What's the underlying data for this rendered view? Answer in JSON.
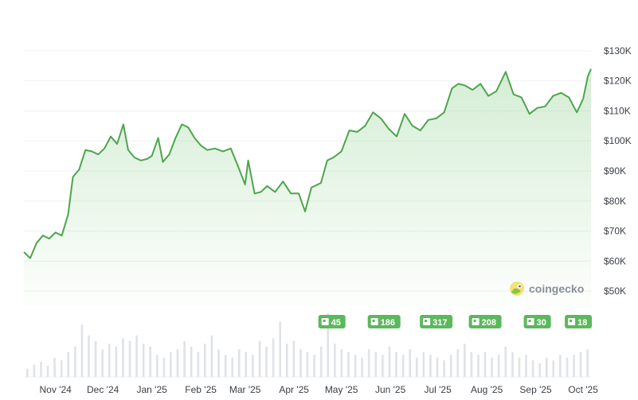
{
  "chart_data": {
    "type": "area",
    "ylim": [
      45000,
      135000
    ],
    "y_ticks": [
      "$130K",
      "$120K",
      "$110K",
      "$100K",
      "$90K",
      "$80K",
      "$70K",
      "$60K",
      "$50K"
    ],
    "x_ticks": [
      "Nov '24",
      "Dec '24",
      "Jan '25",
      "Feb '25",
      "Mar '25",
      "Apr '25",
      "May '25",
      "Jun '25",
      "Jul '25",
      "Aug '25",
      "Sep '25",
      "Oct '25"
    ],
    "grid": true,
    "line_color": "#4CA64C",
    "fill_color": "#8fd08f",
    "volume_color": "#dfe3e8",
    "series": [
      {
        "x": [
          "2024-10-12",
          "2024-10-16",
          "2024-10-20",
          "2024-10-24",
          "2024-10-28",
          "2024-11-01",
          "2024-11-05",
          "2024-11-09",
          "2024-11-12",
          "2024-11-16",
          "2024-11-20",
          "2024-11-24",
          "2024-11-28",
          "2024-12-02",
          "2024-12-06",
          "2024-12-10",
          "2024-12-14",
          "2024-12-17",
          "2024-12-21",
          "2024-12-25",
          "2024-12-29",
          "2025-01-01",
          "2025-01-05",
          "2025-01-08",
          "2025-01-12",
          "2025-01-16",
          "2025-01-20",
          "2025-01-24",
          "2025-01-28",
          "2025-02-01",
          "2025-02-05",
          "2025-02-10",
          "2025-02-15",
          "2025-02-20",
          "2025-02-25",
          "2025-03-01",
          "2025-03-03",
          "2025-03-07",
          "2025-03-11",
          "2025-03-15",
          "2025-03-20",
          "2025-03-25",
          "2025-03-30",
          "2025-04-04",
          "2025-04-08",
          "2025-04-12",
          "2025-04-18",
          "2025-04-22",
          "2025-04-26",
          "2025-05-01",
          "2025-05-06",
          "2025-05-11",
          "2025-05-16",
          "2025-05-21",
          "2025-05-26",
          "2025-05-31",
          "2025-06-05",
          "2025-06-10",
          "2025-06-15",
          "2025-06-20",
          "2025-06-25",
          "2025-06-30",
          "2025-07-05",
          "2025-07-10",
          "2025-07-14",
          "2025-07-18",
          "2025-07-23",
          "2025-07-28",
          "2025-08-02",
          "2025-08-07",
          "2025-08-13",
          "2025-08-18",
          "2025-08-23",
          "2025-08-28",
          "2025-09-02",
          "2025-09-07",
          "2025-09-12",
          "2025-09-17",
          "2025-09-22",
          "2025-09-27",
          "2025-10-01",
          "2025-10-04",
          "2025-10-06"
        ],
        "values": [
          63000,
          61000,
          66000,
          68500,
          67500,
          69500,
          68500,
          75500,
          88000,
          90500,
          97000,
          96500,
          95500,
          97500,
          101500,
          99000,
          105500,
          97000,
          94500,
          93500,
          94000,
          95000,
          101000,
          93000,
          95500,
          101000,
          105500,
          104500,
          101000,
          98500,
          97000,
          97500,
          96500,
          97500,
          91000,
          85500,
          93500,
          82500,
          83000,
          85000,
          83000,
          86500,
          82500,
          82500,
          76500,
          84500,
          86000,
          93500,
          94500,
          96500,
          103500,
          103000,
          105000,
          109500,
          107500,
          104000,
          101500,
          109000,
          105000,
          103500,
          107000,
          107500,
          109500,
          117500,
          119000,
          118500,
          117000,
          119000,
          115000,
          116500,
          123000,
          115500,
          114500,
          109000,
          111000,
          111500,
          115000,
          116000,
          114500,
          109500,
          114000,
          121500,
          124000
        ]
      }
    ],
    "event_badges": [
      "45",
      "186",
      "317",
      "208",
      "30",
      "18"
    ],
    "volume": [
      6,
      9,
      11,
      8,
      14,
      12,
      18,
      22,
      38,
      30,
      26,
      20,
      24,
      22,
      28,
      26,
      30,
      24,
      22,
      16,
      14,
      18,
      20,
      26,
      22,
      18,
      24,
      30,
      20,
      16,
      14,
      20,
      18,
      16,
      26,
      22,
      28,
      40,
      24,
      26,
      20,
      18,
      16,
      22,
      46,
      24,
      20,
      18,
      16,
      14,
      20,
      18,
      16,
      22,
      18,
      16,
      20,
      14,
      18,
      16,
      14,
      12,
      16,
      20,
      24,
      18,
      16,
      18,
      14,
      16,
      22,
      18,
      14,
      16,
      12,
      10,
      14,
      12,
      16,
      14,
      16,
      18,
      20
    ],
    "watermark": "coingecko"
  }
}
